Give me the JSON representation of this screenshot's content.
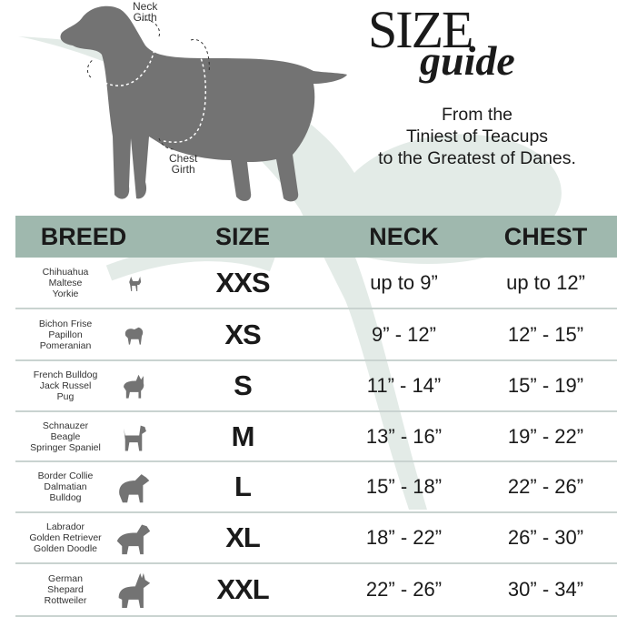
{
  "hero": {
    "neck_label": [
      "Neck",
      "Girth"
    ],
    "chest_label": [
      "Chest",
      "Girth"
    ]
  },
  "title": {
    "line1": "SIZE",
    "line2": "guide"
  },
  "tagline": [
    "From the",
    "Tiniest of Teacups",
    "to the Greatest of Danes."
  ],
  "colors": {
    "header_band": "#9fb8ae",
    "watermark": "#dfe8e3",
    "silhouette": "#737373"
  },
  "table": {
    "headers": {
      "breed": "BREED",
      "size": "SIZE",
      "neck": "NECK",
      "chest": "CHEST"
    },
    "rows": [
      {
        "breeds": [
          "Chihuahua",
          "Maltese",
          "Yorkie"
        ],
        "icon": "chihuahua-icon",
        "size": "XXS",
        "neck": "up to 9”",
        "chest": "up to 12”"
      },
      {
        "breeds": [
          "Bichon Frise",
          "Papillon",
          "Pomeranian"
        ],
        "icon": "pomeranian-icon",
        "size": "XS",
        "neck": "9” - 12”",
        "chest": "12” - 15”"
      },
      {
        "breeds": [
          "French Bulldog",
          "Jack Russel",
          "Pug"
        ],
        "icon": "french-bulldog-icon",
        "size": "S",
        "neck": "11” - 14”",
        "chest": "15” - 19”"
      },
      {
        "breeds": [
          "Schnauzer",
          "Beagle",
          "Springer Spaniel"
        ],
        "icon": "schnauzer-icon",
        "size": "M",
        "neck": "13” - 16”",
        "chest": "19” - 22”"
      },
      {
        "breeds": [
          "Border Collie",
          "Dalmatian",
          "Bulldog"
        ],
        "icon": "border-collie-icon",
        "size": "L",
        "neck": "15” - 18”",
        "chest": "22” - 26”"
      },
      {
        "breeds": [
          "Labrador",
          "Golden Retriever",
          "Golden Doodle"
        ],
        "icon": "labrador-icon",
        "size": "XL",
        "neck": "18” - 22”",
        "chest": "26” - 30”"
      },
      {
        "breeds": [
          "German",
          "Shepard",
          "Rottweiler"
        ],
        "icon": "german-shepherd-icon",
        "size": "XXL",
        "neck": "22” - 26”",
        "chest": "30” - 34”"
      }
    ]
  }
}
